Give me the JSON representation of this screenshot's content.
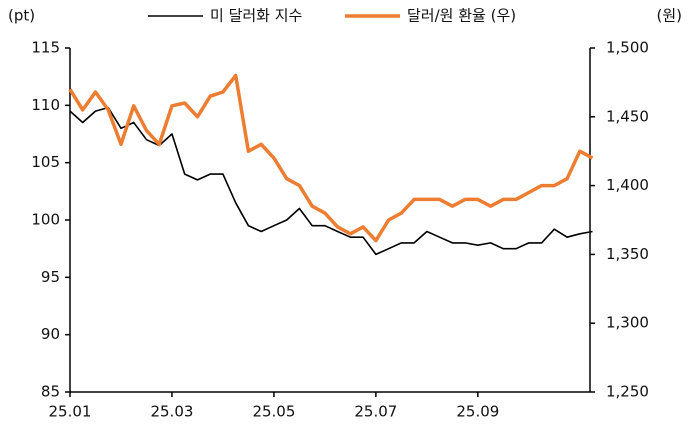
{
  "chart_data": {
    "type": "line",
    "y_label": "(pt)",
    "y2_label": "(원)",
    "x": [
      0,
      0.25,
      0.5,
      0.75,
      1,
      1.25,
      1.5,
      1.75,
      2,
      2.25,
      2.5,
      2.75,
      3,
      3.25,
      3.5,
      3.75,
      4,
      4.25,
      4.5,
      4.75,
      5,
      5.25,
      5.5,
      5.75,
      6,
      6.25,
      6.5,
      6.75,
      7,
      7.25,
      7.5,
      7.75,
      8,
      8.25,
      8.5,
      8.75,
      9,
      9.25,
      9.5,
      9.75,
      10,
      10.25
    ],
    "xlim": [
      0,
      10.2
    ],
    "xticks": [
      {
        "value": 0,
        "label": "25.01"
      },
      {
        "value": 2,
        "label": "25.03"
      },
      {
        "value": 4,
        "label": "25.05"
      },
      {
        "value": 6,
        "label": "25.07"
      },
      {
        "value": 8,
        "label": "25.09"
      }
    ],
    "ylim": [
      85,
      115
    ],
    "yticks": [
      85,
      90,
      95,
      100,
      105,
      110,
      115
    ],
    "y2lim": [
      1250,
      1500
    ],
    "y2ticks": [
      {
        "value": 1250,
        "label": "1,250"
      },
      {
        "value": 1300,
        "label": "1,300"
      },
      {
        "value": 1350,
        "label": "1,350"
      },
      {
        "value": 1400,
        "label": "1,400"
      },
      {
        "value": 1450,
        "label": "1,450"
      },
      {
        "value": 1500,
        "label": "1,500"
      }
    ],
    "grid": false,
    "legend": "top",
    "series": [
      {
        "name": "미 달러화 지수",
        "color": "#000000",
        "values": [
          109.5,
          108.5,
          109.5,
          109.8,
          108,
          108.5,
          107,
          106.5,
          107.5,
          104,
          103.5,
          104,
          104,
          101.5,
          99.5,
          99,
          99.5,
          100,
          101,
          99.5,
          99.5,
          99,
          98.5,
          98.5,
          97,
          97.5,
          98,
          98,
          99,
          98.5,
          98,
          98,
          97.8,
          98,
          97.5,
          97.5,
          98,
          98,
          99.2,
          98.5,
          98.8,
          99
        ]
      },
      {
        "name": "달러/원 환율 (우)",
        "color": "#ed7d31",
        "axis": "y2",
        "values": [
          1470,
          1455,
          1468,
          1455,
          1430,
          1458,
          1440,
          1430,
          1458,
          1460,
          1450,
          1465,
          1468,
          1480,
          1425,
          1430,
          1420,
          1405,
          1400,
          1385,
          1380,
          1370,
          1365,
          1370,
          1360,
          1375,
          1380,
          1390,
          1390,
          1390,
          1385,
          1390,
          1390,
          1385,
          1390,
          1390,
          1395,
          1400,
          1400,
          1405,
          1425,
          1420
        ]
      }
    ]
  }
}
